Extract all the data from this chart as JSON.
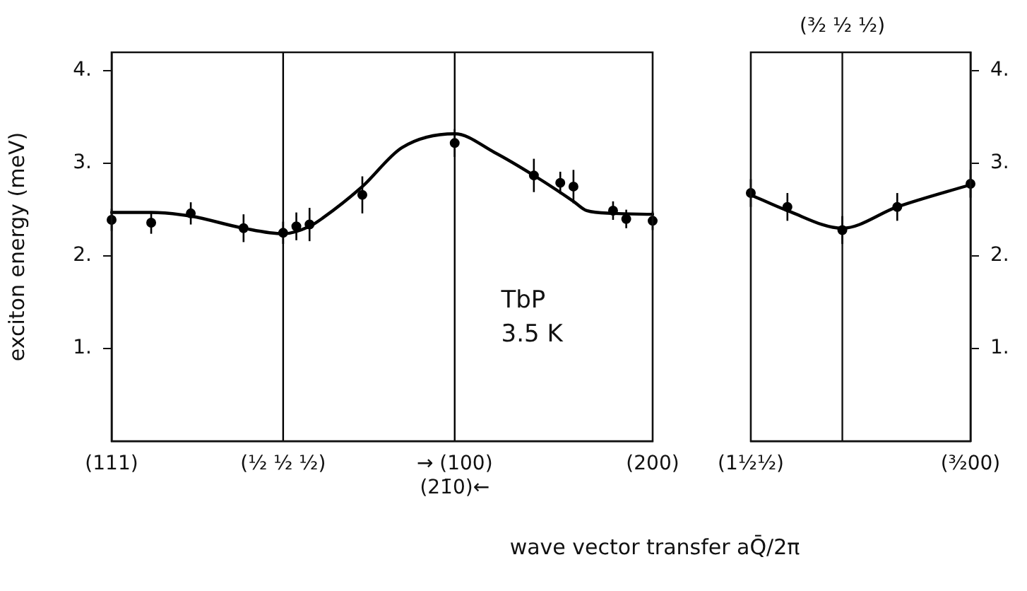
{
  "chart_data": [
    {
      "type": "scatter",
      "ylabel": "exciton energy (meV)",
      "xlabel": "wave vector transfer  aQ̄/2π",
      "annotations": [
        "TbP",
        "3.5 K"
      ],
      "categories": [
        "(111)",
        null,
        null,
        null,
        null,
        null,
        null,
        null,
        null,
        null,
        null,
        null,
        null,
        "(½ ½ ½)",
        null,
        null,
        null,
        null,
        null,
        null,
        null,
        null,
        null,
        null,
        null,
        null,
        "→ (100)\n(21̄0)←",
        null,
        null,
        null,
        null,
        null,
        null,
        null,
        null,
        null,
        null,
        null,
        null,
        null,
        null,
        "(200)"
      ],
      "ylim": [
        0,
        4.2
      ],
      "yticks": [
        {
          "value": 1,
          "label": "1."
        },
        {
          "value": 2,
          "label": "2."
        },
        {
          "value": 3,
          "label": "3."
        },
        {
          "value": 4,
          "label": "4."
        }
      ],
      "marker": "circle",
      "ref_lines": [
        {
          "axis": "x",
          "value": "(½ ½ ½)",
          "color": "#000000"
        },
        {
          "axis": "x",
          "value": "→ (100)\n(21̄0)←",
          "color": "#000000"
        }
      ],
      "series": [
        {
          "type": "scatter",
          "color": "#000000",
          "values": [
            2.39,
            null,
            null,
            2.36,
            null,
            null,
            2.46,
            null,
            null,
            null,
            2.3,
            null,
            null,
            2.25,
            2.32,
            2.34,
            null,
            null,
            null,
            2.66,
            null,
            null,
            null,
            null,
            null,
            null,
            3.22,
            null,
            null,
            null,
            null,
            null,
            2.87,
            null,
            2.79,
            2.75,
            null,
            null,
            2.49,
            2.4,
            null,
            2.38
          ],
          "errors": [
            0.12,
            null,
            null,
            0.12,
            null,
            null,
            0.12,
            null,
            null,
            null,
            0.15,
            null,
            null,
            0.12,
            0.15,
            0.18,
            null,
            null,
            null,
            0.2,
            null,
            null,
            null,
            null,
            null,
            null,
            0.15,
            null,
            null,
            null,
            null,
            null,
            0.18,
            null,
            0.12,
            0.18,
            null,
            null,
            0.1,
            0.1,
            null,
            0.1
          ]
        },
        {
          "type": "line",
          "color": "#000000",
          "line_style": "solid",
          "marker": "none",
          "values": [
            2.47,
            null,
            null,
            2.47,
            null,
            null,
            2.43,
            null,
            null,
            null,
            2.3,
            null,
            null,
            2.24,
            null,
            2.32,
            2.41,
            null,
            null,
            2.75,
            null,
            null,
            3.17,
            null,
            null,
            null,
            3.32,
            null,
            null,
            3.12,
            null,
            null,
            2.87,
            null,
            null,
            2.59,
            2.49,
            null,
            2.46,
            null,
            null,
            2.45
          ]
        }
      ]
    },
    {
      "type": "scatter",
      "categories": [
        "(1½½)",
        null,
        null,
        null,
        null,
        null,
        null,
        null,
        null,
        null,
        null,
        null,
        "(³⁄₂00)"
      ],
      "ylim": [
        0,
        4.2
      ],
      "yticks": [
        {
          "value": 1,
          "label": "1."
        },
        {
          "value": 2,
          "label": "2."
        },
        {
          "value": 3,
          "label": "3."
        },
        {
          "value": 4,
          "label": "4."
        }
      ],
      "marker": "circle",
      "annotations": [
        "(³⁄₂ ½ ½)"
      ],
      "series": [
        {
          "type": "scatter",
          "color": "#000000",
          "values": [
            2.68,
            null,
            2.53,
            null,
            null,
            2.28,
            null,
            null,
            2.53,
            null,
            null,
            null,
            2.78
          ],
          "errors": [
            0.15,
            null,
            0.15,
            null,
            null,
            0.15,
            null,
            null,
            0.15,
            null,
            null,
            null,
            0.15
          ]
        },
        {
          "type": "line",
          "color": "#000000",
          "line_style": "solid",
          "marker": "none",
          "values": [
            2.66,
            null,
            2.49,
            null,
            null,
            2.3,
            null,
            null,
            2.53,
            null,
            null,
            null,
            2.77
          ]
        }
      ]
    }
  ]
}
